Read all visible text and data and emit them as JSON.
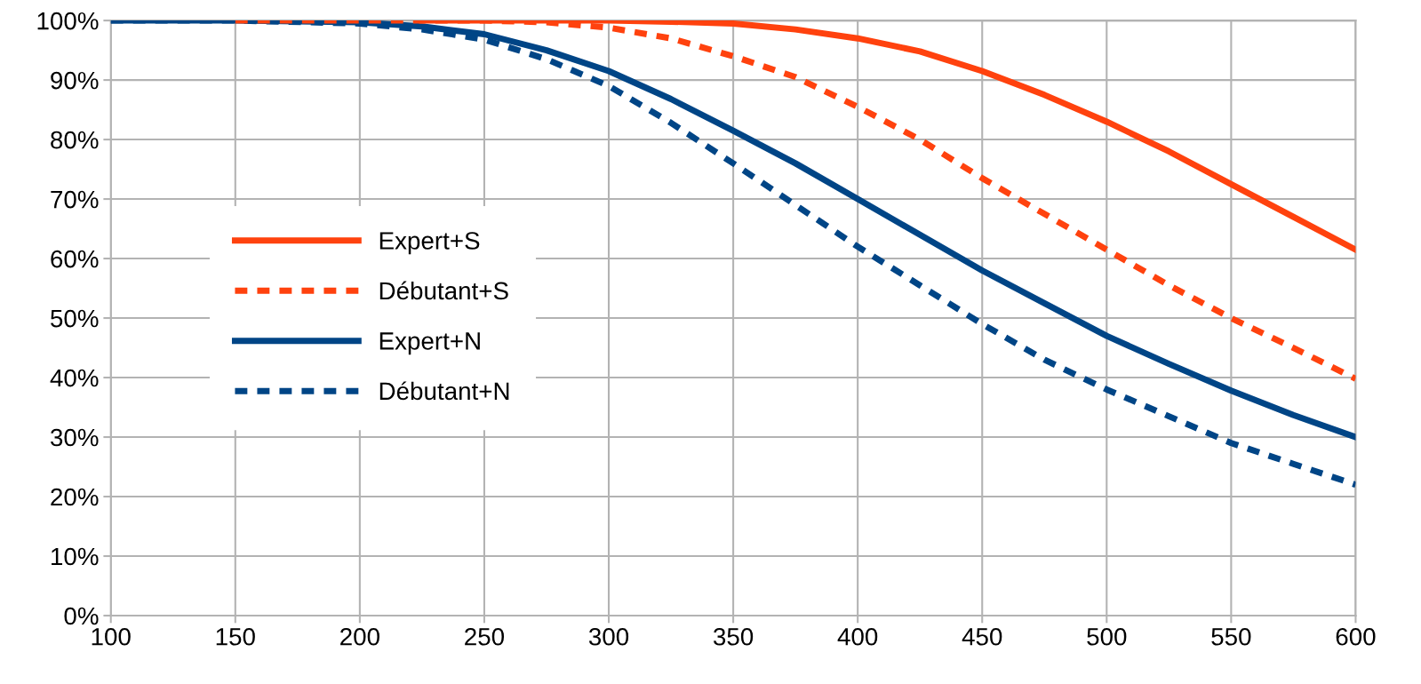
{
  "chart_data": {
    "type": "line",
    "x": [
      100,
      150,
      200,
      225,
      250,
      275,
      300,
      325,
      350,
      375,
      400,
      425,
      450,
      475,
      500,
      525,
      550,
      575,
      600
    ],
    "series": [
      {
        "name": "Expert+S",
        "color": "#ff420e",
        "line_style": "solid",
        "values": [
          null,
          null,
          null,
          100,
          100,
          100,
          100,
          99.8,
          99.5,
          98.5,
          97,
          94.8,
          91.5,
          87.5,
          83,
          78,
          72.5,
          67,
          61.5
        ]
      },
      {
        "name": "Débutant+S",
        "color": "#ff420e",
        "line_style": "dashed",
        "values": [
          null,
          100,
          100,
          100,
          100,
          99.7,
          98.8,
          97,
          94,
          90.5,
          85.5,
          80,
          73.5,
          67.5,
          61.5,
          55.5,
          50,
          45,
          39.8
        ]
      },
      {
        "name": "Expert+N",
        "color": "#004586",
        "line_style": "solid",
        "values": [
          100,
          100,
          99.7,
          99,
          97.7,
          95,
          91.5,
          86.8,
          81.5,
          76,
          70,
          64,
          58,
          52.5,
          47,
          42.3,
          37.8,
          33.7,
          30
        ]
      },
      {
        "name": "Débutant+N",
        "color": "#004586",
        "line_style": "dashed",
        "values": [
          100,
          100,
          99.5,
          98.5,
          96.8,
          93.5,
          89,
          82.8,
          76,
          69,
          62,
          55.5,
          49,
          43,
          38,
          33.5,
          29,
          25.5,
          22
        ]
      }
    ],
    "xlim": [
      100,
      600
    ],
    "xticks": [
      100,
      150,
      200,
      250,
      300,
      350,
      400,
      450,
      500,
      550,
      600
    ],
    "ylim": [
      0,
      100
    ],
    "yticks": [
      {
        "value": 0,
        "label": "0%"
      },
      {
        "value": 10,
        "label": "10%"
      },
      {
        "value": 20,
        "label": "20%"
      },
      {
        "value": 30,
        "label": "30%"
      },
      {
        "value": 40,
        "label": "40%"
      },
      {
        "value": 50,
        "label": "50%"
      },
      {
        "value": 60,
        "label": "60%"
      },
      {
        "value": 70,
        "label": "70%"
      },
      {
        "value": 80,
        "label": "80%"
      },
      {
        "value": 90,
        "label": "90%"
      },
      {
        "value": 100,
        "label": "100%"
      }
    ],
    "grid": true,
    "legend": "center left",
    "marker": "none"
  }
}
